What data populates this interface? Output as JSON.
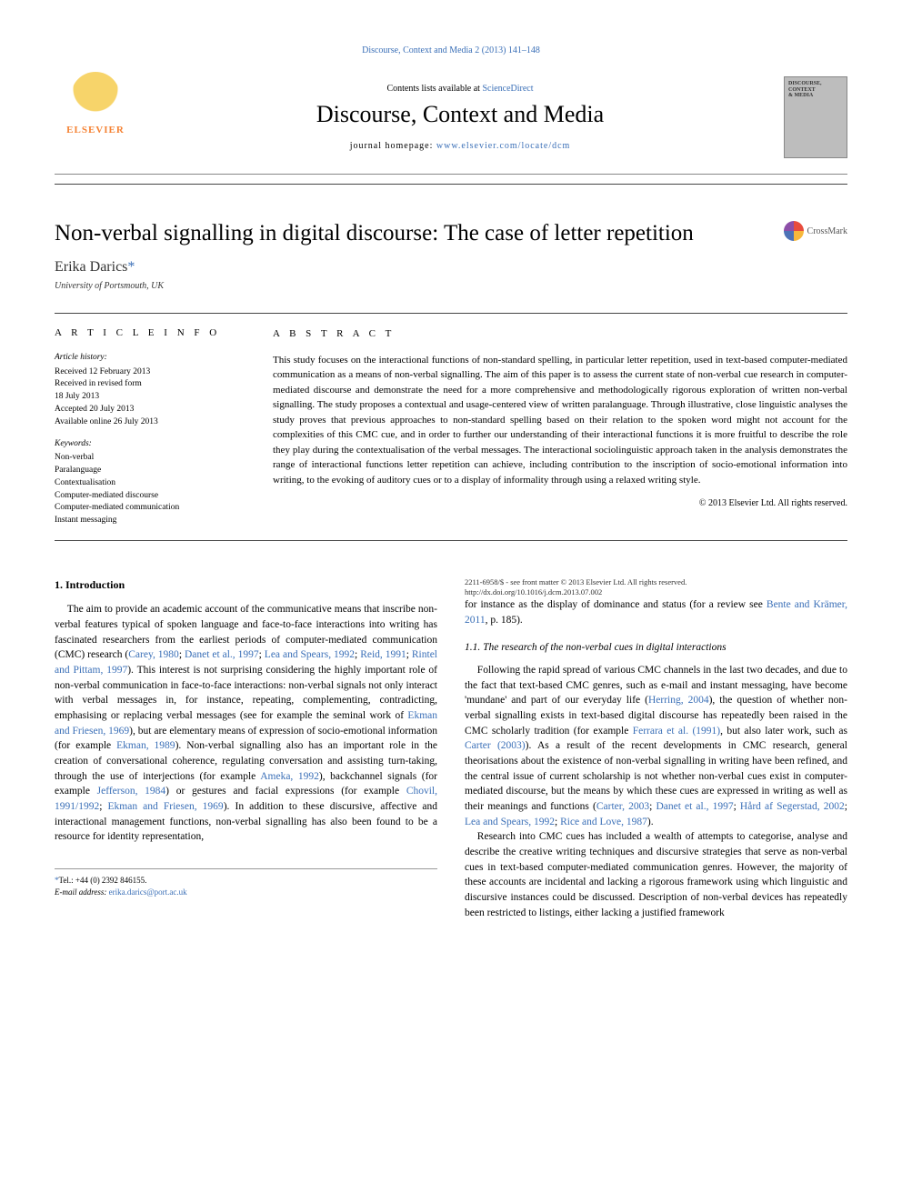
{
  "top_link": "Discourse, Context and Media 2 (2013) 141–148",
  "header": {
    "publisher": "ELSEVIER",
    "contents_prefix": "Contents lists available at ",
    "contents_link": "ScienceDirect",
    "journal_title": "Discourse, Context and Media",
    "homepage_prefix": "journal homepage: ",
    "homepage_url": "www.elsevier.com/locate/dcm",
    "cover_lines": [
      "DISCOURSE,",
      "CONTEXT",
      "& MEDIA"
    ]
  },
  "crossmark": "CrossMark",
  "article": {
    "title": "Non-verbal signalling in digital discourse: The case of letter repetition",
    "author": "Erika Darics",
    "star": "*",
    "affiliation": "University of Portsmouth, UK"
  },
  "info": {
    "heading": "A R T I C L E  I N F O",
    "history_label": "Article history:",
    "received": "Received 12 February 2013",
    "revised": "Received in revised form",
    "revised_date": "18 July 2013",
    "accepted": "Accepted 20 July 2013",
    "online": "Available online 26 July 2013",
    "keywords_label": "Keywords:",
    "keywords": [
      "Non-verbal",
      "Paralanguage",
      "Contextualisation",
      "Computer-mediated discourse",
      "Computer-mediated communication",
      "Instant messaging"
    ]
  },
  "abstract": {
    "heading": "A B S T R A C T",
    "text": "This study focuses on the interactional functions of non-standard spelling, in particular letter repetition, used in text-based computer-mediated communication as a means of non-verbal signalling. The aim of this paper is to assess the current state of non-verbal cue research in computer-mediated discourse and demonstrate the need for a more comprehensive and methodologically rigorous exploration of written non-verbal signalling. The study proposes a contextual and usage-centered view of written paralanguage. Through illustrative, close linguistic analyses the study proves that previous approaches to non-standard spelling based on their relation to the spoken word might not account for the complexities of this CMC cue, and in order to further our understanding of their interactional functions it is more fruitful to describe the role they play during the contextualisation of the verbal messages. The interactional sociolinguistic approach taken in the analysis demonstrates the range of interactional functions letter repetition can achieve, including contribution to the inscription of socio-emotional information into writing, to the evoking of auditory cues or to a display of informality through using a relaxed writing style.",
    "copyright": "© 2013 Elsevier Ltd. All rights reserved."
  },
  "body": {
    "sec1_head": "1.  Introduction",
    "p1a": "The aim to provide an academic account of the communicative means that inscribe non-verbal features typical of spoken language and face-to-face interactions into writing has fascinated researchers from the earliest periods of computer-mediated communication (CMC) research (",
    "c1": "Carey, 1980",
    "s1": "; ",
    "c2": "Danet et al., 1997",
    "s2": "; ",
    "c3": "Lea and Spears, 1992",
    "s3": "; ",
    "c4": "Reid, 1991",
    "s4": "; ",
    "c5": "Rintel and Pittam, 1997",
    "p1b": "). This interest is not surprising considering the highly important role of non-verbal communication in face-to-face interactions: non-verbal signals not only interact with verbal messages in, for instance, repeating, complementing, contradicting, emphasising or replacing verbal messages (see for example the seminal work of ",
    "c6": "Ekman and Friesen, 1969",
    "p1c": "), but are elementary means of expression of socio-emotional information (for example ",
    "c7": "Ekman, 1989",
    "p1d": "). Non-verbal signalling also has an important role in the creation of conversational coherence, regulating conversation and assisting turn-taking, through the use of interjections (for example ",
    "c8": "Ameka, 1992",
    "p1e": "), backchannel signals (for example ",
    "c9": "Jefferson, 1984",
    "p1f": ") or gestures and facial expressions (for example ",
    "c10": "Chovil, 1991/1992",
    "s10": "; ",
    "c11": "Ekman and Friesen, 1969",
    "p1g": "). In addition to these discursive, affective and interactional management functions, non-verbal signalling has also been found to be a resource for identity representation,",
    "p1h_a": "for instance as the display of dominance and status (for a review see ",
    "c12": "Bente and Krämer, 2011",
    "p1h_b": ", p. 185).",
    "sec11_head": "1.1.  The research of the non-verbal cues in digital interactions",
    "p2a": "Following the rapid spread of various CMC channels in the last two decades, and due to the fact that text-based CMC genres, such as e-mail and instant messaging, have become 'mundane' and part of our everyday life (",
    "c13": "Herring, 2004",
    "p2b": "), the question of whether non-verbal signalling exists in text-based digital discourse has repeatedly been raised in the CMC scholarly tradition (for example ",
    "c14": "Ferrara et al. (1991)",
    "p2c": ", but also later work, such as ",
    "c15": "Carter (2003)",
    "p2d": "). As a result of the recent developments in CMC research, general theorisations about the existence of non-verbal signalling in writing have been refined, and the central issue of current scholarship is not whether non-verbal cues exist in computer-mediated discourse, but the means by which these cues are expressed in writing as well as their meanings and functions (",
    "c16": "Carter, 2003",
    "s16": "; ",
    "c17": "Danet et al., 1997",
    "s17": "; ",
    "c18": "Hård af Segerstad, 2002",
    "s18": "; ",
    "c19": "Lea and Spears, 1992",
    "s19": "; ",
    "c20": "Rice and Love, 1987",
    "p2e": ").",
    "p3": "Research into CMC cues has included a wealth of attempts to categorise, analyse and describe the creative writing techniques and discursive strategies that serve as non-verbal cues in text-based computer-mediated communication genres. However, the majority of these accounts are incidental and lacking a rigorous framework using which linguistic and discursive instances could be discussed. Description of non-verbal devices has repeatedly been restricted to listings, either lacking a justified framework"
  },
  "footnote": {
    "star": "*",
    "tel": "Tel.: +44 (0) 2392 846155.",
    "email_label": "E-mail address: ",
    "email": "erika.darics@port.ac.uk"
  },
  "footer": {
    "line1": "2211-6958/$ - see front matter © 2013 Elsevier Ltd. All rights reserved.",
    "line2": "http://dx.doi.org/10.1016/j.dcm.2013.07.002"
  },
  "colors": {
    "link": "#3a6fb7",
    "publisher_orange": "#f58233"
  }
}
